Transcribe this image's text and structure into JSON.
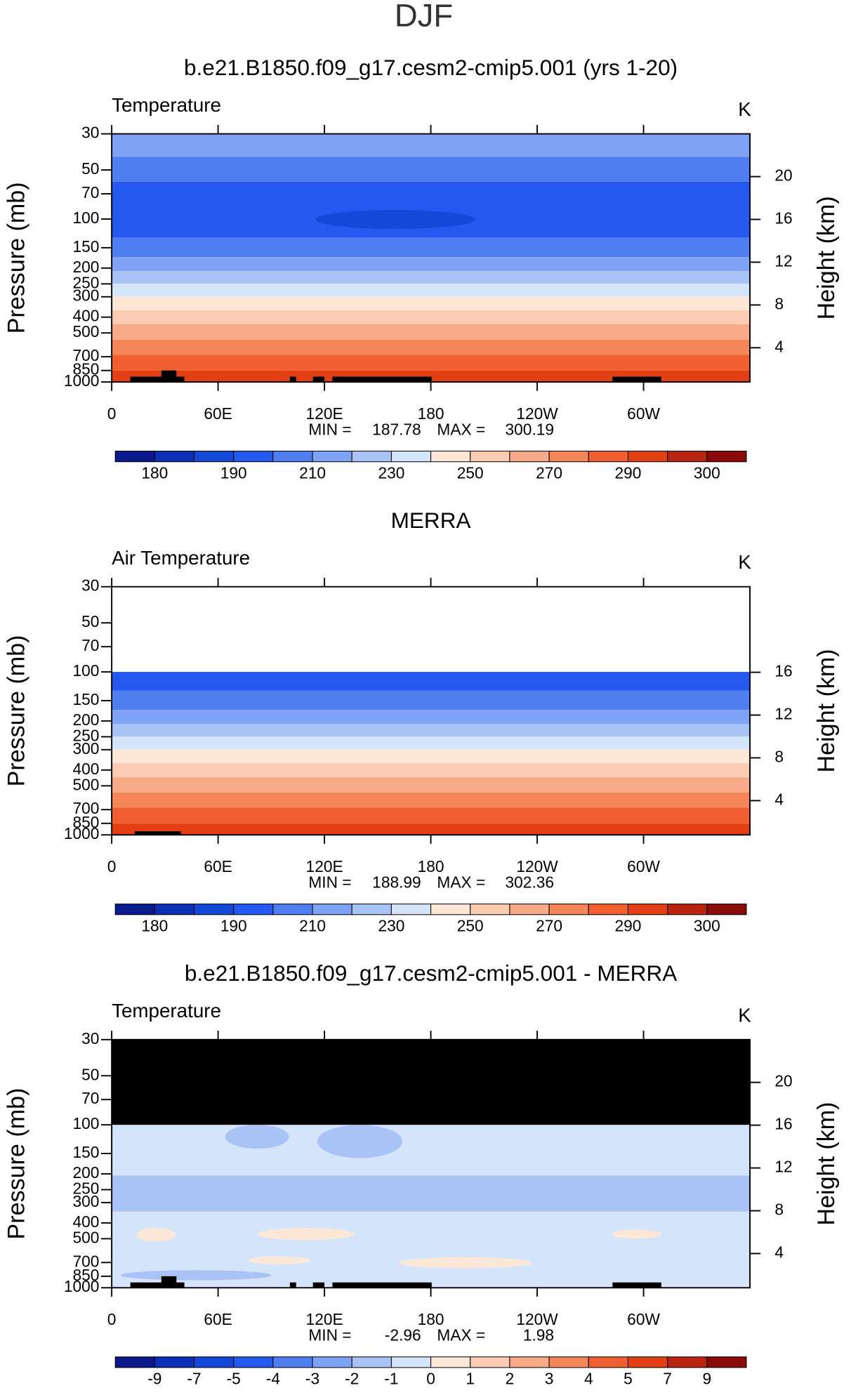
{
  "title": "DJF",
  "chart_data": [
    {
      "type": "contour",
      "title": "b.e21.B1850.f09_g17.cesm2-cmip5.001 (yrs 1-20)",
      "subtitle": "Temperature",
      "units": "K",
      "ylabel": "Pressure (mb)",
      "y2label": "Height (km)",
      "xlim": [
        0,
        360
      ],
      "xticks": [
        0,
        {
          "value": 60,
          "label": "60E"
        },
        {
          "value": 120,
          "label": "120E"
        },
        180,
        {
          "value": 240,
          "label": "120W"
        },
        {
          "value": 300,
          "label": "60W"
        }
      ],
      "ylim": [
        1000,
        30
      ],
      "yticks": [
        30,
        50,
        70,
        100,
        150,
        200,
        250,
        300,
        400,
        500,
        700,
        850,
        1000
      ],
      "log_y": true,
      "y2lim": [
        0.8,
        24
      ],
      "y2ticks": [
        4,
        8,
        12,
        16,
        20
      ],
      "min_label": "MIN =",
      "min": 187.78,
      "max_label": "MAX =",
      "max": 300.19,
      "levels": [
        180,
        185,
        190,
        200,
        210,
        220,
        230,
        240,
        250,
        260,
        270,
        280,
        290,
        295,
        300
      ],
      "cbar_ticks": [
        180,
        190,
        210,
        230,
        250,
        270,
        290,
        300
      ],
      "colors": [
        "#0a1a8c",
        "#0b2fb5",
        "#1448d8",
        "#2458ee",
        "#4f7ef1",
        "#7ea2f4",
        "#a9c3f7",
        "#d4e5fb",
        "#fde8d8",
        "#fbcbb3",
        "#f8a987",
        "#f48659",
        "#f15f30",
        "#e23f14",
        "#b82410",
        "#8b0a0a"
      ],
      "bands": [
        {
          "p": [
            41.5,
            30
          ],
          "value": 215
        },
        {
          "p": [
            59,
            41.5
          ],
          "value": 205
        },
        {
          "p": [
            130,
            59
          ],
          "value": 195
        },
        {
          "p": [
            115,
            88
          ],
          "lon": [
            115,
            205
          ],
          "value": 188
        },
        {
          "p": [
            171,
            130
          ],
          "value": 205
        },
        {
          "p": [
            209,
            171
          ],
          "value": 215
        },
        {
          "p": [
            249,
            209
          ],
          "value": 225
        },
        {
          "p": [
            300,
            249
          ],
          "value": 235
        },
        {
          "p": [
            363,
            300
          ],
          "value": 245
        },
        {
          "p": [
            443,
            363
          ],
          "value": 255
        },
        {
          "p": [
            549,
            443
          ],
          "value": 265
        },
        {
          "p": [
            680,
            549
          ],
          "value": 275
        },
        {
          "p": [
            850,
            680
          ],
          "value": 285
        },
        {
          "p": [
            1000,
            850
          ],
          "value": 292
        }
      ]
    },
    {
      "type": "contour",
      "title": "MERRA",
      "subtitle": "Air Temperature",
      "units": "K",
      "ylabel": "Pressure (mb)",
      "y2label": "Height (km)",
      "xlim": [
        0,
        360
      ],
      "xticks": [
        0,
        {
          "value": 60,
          "label": "60E"
        },
        {
          "value": 120,
          "label": "120E"
        },
        180,
        {
          "value": 240,
          "label": "120W"
        },
        {
          "value": 300,
          "label": "60W"
        }
      ],
      "ylim": [
        1000,
        30
      ],
      "yticks": [
        30,
        50,
        70,
        100,
        150,
        200,
        250,
        300,
        400,
        500,
        700,
        850,
        1000
      ],
      "log_y": true,
      "y2lim": [
        0.8,
        24
      ],
      "y2ticks": [
        4,
        8,
        12,
        16
      ],
      "min_label": "MIN =",
      "min": 188.99,
      "max_label": "MAX =",
      "max": 302.36,
      "levels": [
        180,
        185,
        190,
        200,
        210,
        220,
        230,
        240,
        250,
        260,
        270,
        280,
        290,
        295,
        300
      ],
      "cbar_ticks": [
        180,
        190,
        210,
        230,
        250,
        270,
        290,
        300
      ],
      "colors": [
        "#0a1a8c",
        "#0b2fb5",
        "#1448d8",
        "#2458ee",
        "#4f7ef1",
        "#7ea2f4",
        "#a9c3f7",
        "#d4e5fb",
        "#fde8d8",
        "#fbcbb3",
        "#f8a987",
        "#f48659",
        "#f15f30",
        "#e23f14",
        "#b82410",
        "#8b0a0a"
      ],
      "bands": [
        {
          "p": [
            130,
            100
          ],
          "value": 195
        },
        {
          "p": [
            171,
            130
          ],
          "value": 205
        },
        {
          "p": [
            209,
            171
          ],
          "value": 215
        },
        {
          "p": [
            249,
            209
          ],
          "value": 225
        },
        {
          "p": [
            300,
            249
          ],
          "value": 235
        },
        {
          "p": [
            363,
            300
          ],
          "value": 245
        },
        {
          "p": [
            443,
            363
          ],
          "value": 255
        },
        {
          "p": [
            549,
            443
          ],
          "value": 265
        },
        {
          "p": [
            680,
            549
          ],
          "value": 275
        },
        {
          "p": [
            850,
            680
          ],
          "value": 285
        },
        {
          "p": [
            1000,
            850
          ],
          "value": 292
        }
      ]
    },
    {
      "type": "contour",
      "title": "b.e21.B1850.f09_g17.cesm2-cmip5.001 - MERRA",
      "subtitle": "Temperature",
      "units": "K",
      "ylabel": "Pressure (mb)",
      "y2label": "Height (km)",
      "xlim": [
        0,
        360
      ],
      "xticks": [
        0,
        {
          "value": 60,
          "label": "60E"
        },
        {
          "value": 120,
          "label": "120E"
        },
        180,
        {
          "value": 240,
          "label": "120W"
        },
        {
          "value": 300,
          "label": "60W"
        }
      ],
      "ylim": [
        1000,
        30
      ],
      "yticks": [
        30,
        50,
        70,
        100,
        150,
        200,
        250,
        300,
        400,
        500,
        700,
        850,
        1000
      ],
      "log_y": true,
      "y2lim": [
        0.8,
        24
      ],
      "y2ticks": [
        4,
        8,
        12,
        16,
        20
      ],
      "min_label": "MIN =",
      "min": -2.96,
      "max_label": "MAX =",
      "max": 1.98,
      "levels": [
        -9,
        -7,
        -5,
        -4,
        -3,
        -2,
        -1,
        0,
        1,
        2,
        3,
        4,
        5,
        7,
        9
      ],
      "colors": [
        "#0a1a8c",
        "#0b2fb5",
        "#1448d8",
        "#2458ee",
        "#4f7ef1",
        "#7ea2f4",
        "#a9c3f7",
        "#d4e5fb",
        "#fde8d8",
        "#fbcbb3",
        "#f8a987",
        "#f48659",
        "#f15f30",
        "#e23f14",
        "#b82410",
        "#8b0a0a"
      ],
      "bands": [
        {
          "p": [
            1000,
            100
          ],
          "value": -0.5
        },
        {
          "p": [
            340,
            205
          ],
          "value": -1.5
        },
        {
          "p": [
            140,
            100
          ],
          "lon": [
            64,
            100
          ],
          "value": -1.5
        },
        {
          "p": [
            160,
            100
          ],
          "lon": [
            116,
            164
          ],
          "value": -1.5
        },
        {
          "p": [
            510,
            430
          ],
          "lon": [
            82,
            137
          ],
          "value": 0.5
        },
        {
          "p": [
            520,
            430
          ],
          "lon": [
            14,
            36
          ],
          "value": 0.5
        },
        {
          "p": [
            500,
            440
          ],
          "lon": [
            282,
            310
          ],
          "value": 0.5
        },
        {
          "p": [
            720,
            640
          ],
          "lon": [
            77,
            112
          ],
          "value": 0.5
        },
        {
          "p": [
            760,
            650
          ],
          "lon": [
            162,
            237
          ],
          "value": 0.5
        },
        {
          "p": [
            900,
            780
          ],
          "lon": [
            5,
            90
          ],
          "value": -1.5
        }
      ]
    }
  ]
}
